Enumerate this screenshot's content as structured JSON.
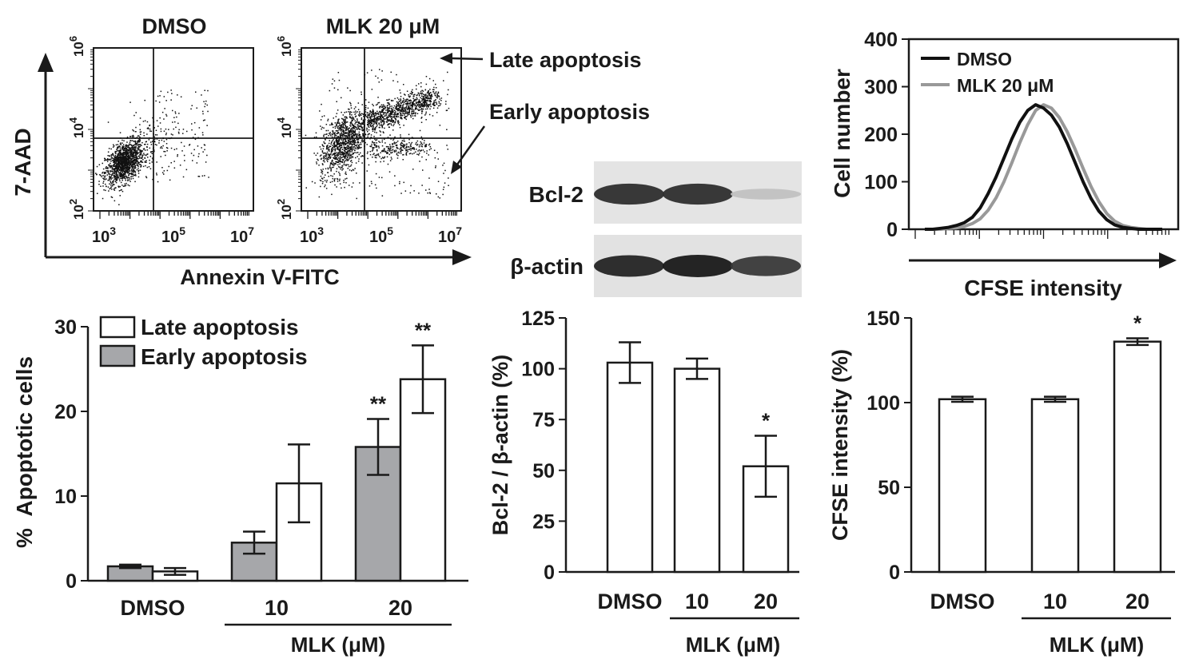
{
  "flow": {
    "y_axis_label": "7-AAD",
    "x_axis_label": "Annexin V-FITC",
    "panels": [
      {
        "title": "DMSO"
      },
      {
        "title": "MLK 20 μM"
      }
    ],
    "x_ticks": [
      {
        "base": "10",
        "exp": "3"
      },
      {
        "base": "10",
        "exp": "5"
      },
      {
        "base": "10",
        "exp": "7"
      }
    ],
    "y_ticks": [
      {
        "base": "10",
        "exp": "2"
      },
      {
        "base": "10",
        "exp": "4"
      },
      {
        "base": "10",
        "exp": "6"
      }
    ],
    "annotations": {
      "late": "Late apoptosis",
      "early": "Early apoptosis"
    }
  },
  "western": {
    "bands": [
      {
        "label": "Bcl-2",
        "intensities": [
          0.9,
          0.9,
          0.2
        ]
      },
      {
        "label": "β-actin",
        "intensities": [
          0.95,
          1.0,
          0.85
        ]
      }
    ]
  },
  "chart_data": [
    {
      "type": "bar",
      "categories": [
        "DMSO",
        "10",
        "20"
      ],
      "series": [
        {
          "name": "Early apoptosis",
          "values": [
            1.7,
            4.5,
            15.8
          ],
          "errors": [
            0.2,
            1.3,
            3.3
          ],
          "color": "#a6a7aa",
          "marks": [
            "",
            "",
            "**"
          ]
        },
        {
          "name": "Late apoptosis",
          "values": [
            1.1,
            11.5,
            23.8
          ],
          "errors": [
            0.4,
            4.6,
            4.0
          ],
          "color": "#ffffff",
          "marks": [
            "",
            "",
            "**"
          ]
        }
      ],
      "ylabel": "%  Apoptotic cells",
      "ylim": [
        0,
        30
      ],
      "yticks": [
        0,
        10,
        20,
        30
      ],
      "group_label": "MLK (μM)",
      "legend": "top-left"
    },
    {
      "type": "bar",
      "categories": [
        "DMSO",
        "10",
        "20"
      ],
      "values": [
        103,
        100,
        52
      ],
      "errors": [
        10,
        5,
        15
      ],
      "marks": [
        "",
        "",
        "*"
      ],
      "ylabel": "Bcl-2 / β-actin (%)",
      "ylim": [
        0,
        125
      ],
      "yticks": [
        0,
        25,
        50,
        75,
        100,
        125
      ],
      "group_label": "MLK (μM)"
    },
    {
      "type": "bar",
      "categories": [
        "DMSO",
        "10",
        "20"
      ],
      "values": [
        102,
        102,
        136
      ],
      "errors": [
        1.5,
        1.5,
        2
      ],
      "marks": [
        "",
        "",
        "*"
      ],
      "ylabel": "CFSE intensity (%)",
      "ylim": [
        0,
        150
      ],
      "yticks": [
        0,
        50,
        100,
        150
      ],
      "group_label": "MLK (μM)"
    },
    {
      "type": "line",
      "ylabel": "Cell number",
      "xlabel": "CFSE intensity",
      "ylim": [
        0,
        400
      ],
      "yticks": [
        0,
        100,
        200,
        300,
        400
      ],
      "legend": "top-left",
      "series": [
        {
          "name": "DMSO",
          "color": "#111111",
          "values": [
            0,
            0,
            2,
            4,
            8,
            14,
            25,
            45,
            75,
            110,
            150,
            190,
            225,
            250,
            262,
            255,
            240,
            215,
            180,
            140,
            100,
            65,
            38,
            20,
            9,
            4,
            2,
            0,
            0,
            0,
            0
          ]
        },
        {
          "name": "MLK 20 μM",
          "color": "#999999",
          "values": [
            0,
            0,
            0,
            2,
            3,
            6,
            12,
            22,
            40,
            66,
            100,
            140,
            182,
            220,
            250,
            262,
            255,
            235,
            205,
            168,
            128,
            90,
            58,
            33,
            17,
            8,
            4,
            2,
            0,
            0,
            0
          ]
        }
      ]
    }
  ]
}
